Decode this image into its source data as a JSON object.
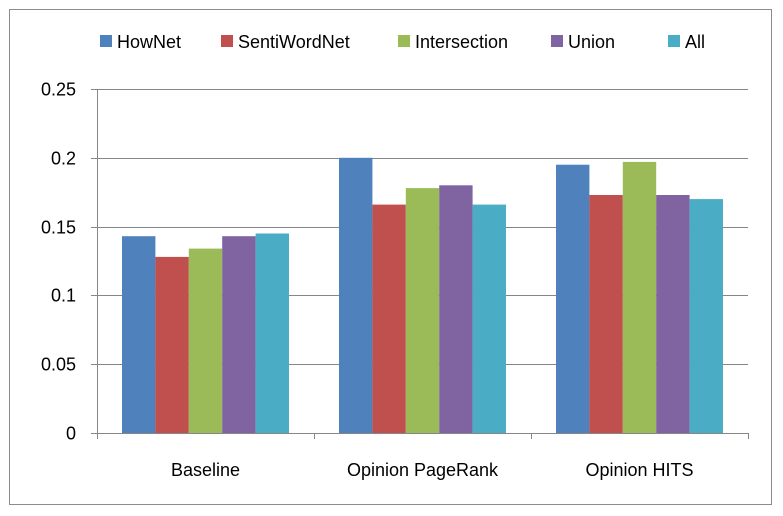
{
  "chart_data": {
    "type": "bar",
    "title": "",
    "xlabel": "",
    "ylabel": "",
    "categories": [
      "Baseline",
      "Opinion PageRank",
      "Opinion HITS"
    ],
    "series": [
      {
        "name": "HowNet",
        "color": "#4F81BD",
        "values": [
          0.143,
          0.2,
          0.195
        ]
      },
      {
        "name": "SentiWordNet",
        "color": "#C0504D",
        "values": [
          0.128,
          0.166,
          0.173
        ]
      },
      {
        "name": "Intersection",
        "color": "#9BBB59",
        "values": [
          0.134,
          0.178,
          0.197
        ]
      },
      {
        "name": "Union",
        "color": "#8064A2",
        "values": [
          0.143,
          0.18,
          0.173
        ]
      },
      {
        "name": "All",
        "color": "#4BACC6",
        "values": [
          0.145,
          0.166,
          0.17
        ]
      }
    ],
    "ylim": [
      0,
      0.25
    ],
    "yticks": [
      0,
      0.05,
      0.1,
      0.15,
      0.2,
      0.25
    ],
    "ytick_labels": [
      "0",
      "0.05",
      "0.1",
      "0.15",
      "0.2",
      "0.25"
    ],
    "grid": true,
    "legend_position": "top"
  }
}
